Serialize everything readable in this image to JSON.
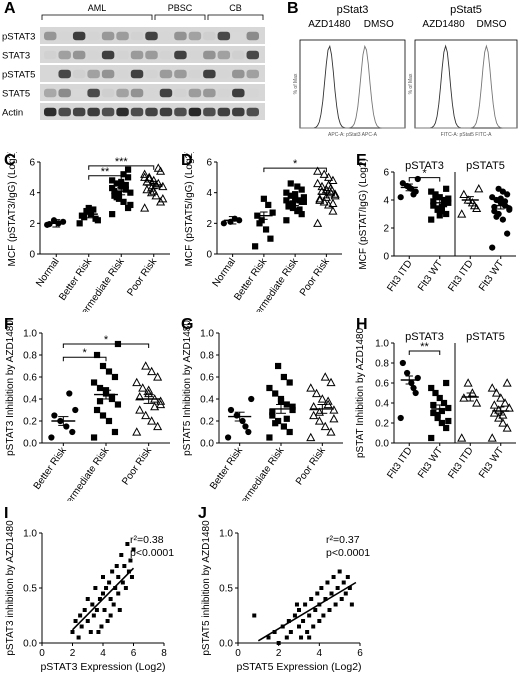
{
  "panels": {
    "A": {
      "letter": "A",
      "groups": [
        "AML",
        "PBSC",
        "CB"
      ],
      "rows": [
        "pSTAT3",
        "STAT3",
        "pSTAT5",
        "STAT5",
        "Actin"
      ]
    },
    "B": {
      "letter": "B",
      "plots": [
        {
          "title": "pStat3",
          "legend": [
            "AZD1480",
            "DMSO"
          ],
          "xlabel": "APC-A: pStat3 APC-A",
          "ylabel": "% of Max"
        },
        {
          "title": "pStat5",
          "legend": [
            "AZD1480",
            "DMSO"
          ],
          "xlabel": "FITC-A: pStat5 FITC-A",
          "ylabel": "% of Max"
        }
      ]
    }
  },
  "chart_data": [
    {
      "id": "C",
      "letter": "C",
      "type": "scatter",
      "ylabel": "MCF (pSTAT3/IgG) (Log2)",
      "ylim": [
        0,
        6
      ],
      "yticks": [
        0,
        2,
        4,
        6
      ],
      "categories": [
        "Normal",
        "Better Risk",
        "Intermediate Risk",
        "Poor Risk"
      ],
      "markers": [
        "circle",
        "square",
        "square",
        "triangle"
      ],
      "groups": [
        [
          1.9,
          2.1,
          2.0,
          2.2,
          1.95
        ],
        [
          2.0,
          2.3,
          2.6,
          2.8,
          2.5,
          2.2,
          2.9,
          3.0,
          2.4
        ],
        [
          2.6,
          3.0,
          3.4,
          3.6,
          3.8,
          4.0,
          4.2,
          4.4,
          4.6,
          4.8,
          5.0,
          5.2,
          3.9,
          4.1,
          3.2,
          4.5,
          4.7,
          3.7,
          4.3,
          5.5
        ],
        [
          3.0,
          3.4,
          3.8,
          4.0,
          4.2,
          4.4,
          4.6,
          4.8,
          5.0,
          5.2,
          5.4,
          4.5,
          4.3,
          4.7,
          3.6,
          5.6,
          4.1,
          4.9,
          5.0
        ]
      ],
      "means": [
        2.0,
        2.6,
        4.1,
        4.5
      ],
      "sigs": [
        {
          "from": 1,
          "to": 2,
          "label": "**",
          "y": 5.1
        },
        {
          "from": 1,
          "to": 3,
          "label": "***",
          "y": 5.75
        }
      ]
    },
    {
      "id": "D",
      "letter": "D",
      "type": "scatter",
      "ylabel": "MCF (pSTAT5/IgG) (Log2)",
      "ylim": [
        0,
        6
      ],
      "yticks": [
        0,
        2,
        4,
        6
      ],
      "categories": [
        "Normal",
        "Better Risk",
        "Intermediate Risk",
        "Poor Risk"
      ],
      "markers": [
        "circle",
        "square",
        "square",
        "triangle"
      ],
      "groups": [
        [
          2.0,
          2.2,
          2.3,
          2.1
        ],
        [
          0.5,
          1.0,
          1.6,
          2.2,
          2.5,
          2.7,
          3.2,
          3.6,
          2.0
        ],
        [
          2.2,
          2.6,
          2.8,
          3.0,
          3.2,
          3.4,
          3.5,
          3.6,
          3.8,
          4.0,
          4.2,
          4.4,
          3.3,
          3.1,
          3.7,
          2.9,
          3.9,
          4.6,
          3.5,
          3.4
        ],
        [
          2.0,
          2.8,
          3.2,
          3.4,
          3.6,
          3.8,
          4.0,
          4.2,
          4.4,
          4.6,
          4.8,
          5.0,
          5.2,
          3.5,
          3.9,
          4.3,
          3.7,
          4.1,
          5.4,
          3.3,
          4.5
        ]
      ],
      "means": [
        2.2,
        2.5,
        3.4,
        3.9
      ],
      "sigs": [
        {
          "from": 1,
          "to": 3,
          "label": "*",
          "y": 5.6
        }
      ]
    },
    {
      "id": "E",
      "letter": "E",
      "type": "scatter",
      "ylabel": "MCF (pSTAT/IgG) (Log2)",
      "ylim": [
        0,
        6
      ],
      "yticks": [
        0,
        2,
        4,
        6
      ],
      "categories": [
        "Flt3 ITD",
        "Flt3 WT",
        "Flt3 ITD",
        "Flt3 WT"
      ],
      "markers": [
        "circle",
        "square",
        "triangle",
        "circle"
      ],
      "headers": [
        "pSTAT3",
        "pSTAT5"
      ],
      "groups": [
        [
          4.2,
          4.6,
          4.8,
          5.0,
          5.2,
          5.5,
          4.4,
          4.9
        ],
        [
          2.6,
          3.0,
          3.2,
          3.4,
          3.6,
          3.8,
          4.0,
          4.2,
          4.4,
          4.6,
          4.8,
          3.5,
          3.3,
          3.9,
          4.1,
          3.7,
          2.9,
          4.3
        ],
        [
          3.0,
          3.4,
          3.8,
          4.0,
          4.4,
          4.8,
          3.6
        ],
        [
          0.6,
          1.6,
          2.6,
          3.0,
          3.2,
          3.4,
          3.6,
          3.8,
          4.0,
          4.2,
          4.4,
          4.6,
          4.8,
          3.5,
          3.3,
          3.9,
          4.1,
          2.8
        ]
      ],
      "means": [
        4.9,
        3.8,
        4.0,
        3.6
      ],
      "sigs": [
        {
          "from": 0,
          "to": 1,
          "label": "*",
          "y": 5.6
        }
      ]
    },
    {
      "id": "F",
      "letter": "F",
      "type": "scatter",
      "ylabel": "pSTAT3 Inhibition by AZD1480",
      "ylim": [
        0,
        1
      ],
      "yticks": [
        0,
        0.2,
        0.4,
        0.6,
        0.8,
        1.0
      ],
      "ytick_labels": [
        "0.0",
        "0.2",
        "0.4",
        "0.6",
        "0.8",
        "1.0"
      ],
      "categories": [
        "Better Risk",
        "Intermediate Risk",
        "Poor Risk"
      ],
      "markers": [
        "circle",
        "square",
        "triangle"
      ],
      "groups": [
        [
          0.05,
          0.1,
          0.15,
          0.2,
          0.25,
          0.3,
          0.45
        ],
        [
          0.05,
          0.1,
          0.2,
          0.25,
          0.3,
          0.35,
          0.4,
          0.45,
          0.5,
          0.55,
          0.6,
          0.65,
          0.7,
          0.8,
          0.9,
          0.42,
          0.48,
          0.38
        ],
        [
          0.1,
          0.15,
          0.2,
          0.25,
          0.3,
          0.35,
          0.4,
          0.45,
          0.5,
          0.55,
          0.6,
          0.65,
          0.7,
          0.42,
          0.38,
          0.33,
          0.48
        ]
      ],
      "means": [
        0.2,
        0.44,
        0.4
      ],
      "sigs": [
        {
          "from": 0,
          "to": 1,
          "label": "*",
          "y": 0.78
        },
        {
          "from": 0,
          "to": 2,
          "label": "*",
          "y": 0.9
        }
      ]
    },
    {
      "id": "G",
      "letter": "G",
      "type": "scatter",
      "ylabel": "pSTAT5 Inhibition by AZD1480",
      "ylim": [
        0,
        1
      ],
      "yticks": [
        0,
        0.2,
        0.4,
        0.6,
        0.8,
        1.0
      ],
      "ytick_labels": [
        "0.0",
        "0.2",
        "0.4",
        "0.6",
        "0.8",
        "1.0"
      ],
      "categories": [
        "Better Risk",
        "Intermediate Risk",
        "Poor Risk"
      ],
      "markers": [
        "circle",
        "square",
        "triangle"
      ],
      "groups": [
        [
          0.05,
          0.1,
          0.2,
          0.25,
          0.3,
          0.4,
          0.15
        ],
        [
          0.05,
          0.1,
          0.15,
          0.2,
          0.25,
          0.3,
          0.35,
          0.4,
          0.45,
          0.5,
          0.55,
          0.6,
          0.7,
          0.28,
          0.33,
          0.22,
          0.38,
          0.18
        ],
        [
          0.05,
          0.1,
          0.15,
          0.2,
          0.25,
          0.3,
          0.35,
          0.4,
          0.45,
          0.5,
          0.55,
          0.6,
          0.28,
          0.33,
          0.22,
          0.38
        ]
      ],
      "means": [
        0.24,
        0.31,
        0.31
      ],
      "sigs": []
    },
    {
      "id": "H",
      "letter": "H",
      "type": "scatter",
      "ylabel": "pSTAT Inhibition by AZD1480",
      "ylim": [
        0,
        1
      ],
      "yticks": [
        0,
        0.2,
        0.4,
        0.6,
        0.8,
        1.0
      ],
      "ytick_labels": [
        "0.0",
        "0.2",
        "0.4",
        "0.6",
        "0.8",
        "1.0"
      ],
      "categories": [
        "Flt3 ITD",
        "Flt3 WT",
        "Flt3 ITD",
        "Flt3 WT"
      ],
      "markers": [
        "circle",
        "square",
        "triangle",
        "triangle"
      ],
      "headers": [
        "pSTAT3",
        "pSTAT5"
      ],
      "groups": [
        [
          0.25,
          0.5,
          0.6,
          0.7,
          0.8,
          0.65,
          0.55
        ],
        [
          0.05,
          0.15,
          0.2,
          0.25,
          0.3,
          0.35,
          0.4,
          0.45,
          0.5,
          0.55,
          0.6,
          0.32,
          0.28,
          0.38,
          0.22
        ],
        [
          0.05,
          0.4,
          0.5,
          0.6,
          0.45
        ],
        [
          0.05,
          0.15,
          0.2,
          0.25,
          0.3,
          0.35,
          0.4,
          0.45,
          0.5,
          0.55,
          0.6,
          0.28,
          0.33,
          0.38
        ]
      ],
      "means": [
        0.63,
        0.34,
        0.46,
        0.32
      ],
      "sigs": [
        {
          "from": 0,
          "to": 1,
          "label": "**",
          "y": 0.92
        }
      ]
    },
    {
      "id": "I",
      "letter": "I",
      "type": "scatter",
      "xlabel": "pSTAT3 Expression (Log2)",
      "ylabel": "pSTAT3 inhibition by AZD1480",
      "xlim": [
        0,
        8
      ],
      "ylim": [
        0,
        1
      ],
      "xticks": [
        0,
        2,
        4,
        6,
        8
      ],
      "yticks": [
        0,
        0.5,
        1.0
      ],
      "ytick_labels": [
        "0.0",
        "0.5",
        "1.0"
      ],
      "annotation": [
        "r²=0.38",
        "p<0.0001"
      ],
      "fit": {
        "x": [
          2,
          6
        ],
        "y": [
          0.12,
          0.68
        ]
      },
      "points": [
        [
          2.0,
          0.1
        ],
        [
          2.2,
          0.2
        ],
        [
          2.4,
          0.05
        ],
        [
          2.5,
          0.25
        ],
        [
          2.6,
          0.15
        ],
        [
          2.8,
          0.3
        ],
        [
          3.0,
          0.2
        ],
        [
          3.0,
          0.4
        ],
        [
          3.2,
          0.1
        ],
        [
          3.3,
          0.35
        ],
        [
          3.4,
          0.25
        ],
        [
          3.5,
          0.5
        ],
        [
          3.6,
          0.3
        ],
        [
          3.8,
          0.4
        ],
        [
          3.9,
          0.15
        ],
        [
          4.0,
          0.45
        ],
        [
          4.0,
          0.6
        ],
        [
          4.1,
          0.3
        ],
        [
          4.2,
          0.5
        ],
        [
          4.3,
          0.2
        ],
        [
          4.4,
          0.55
        ],
        [
          4.5,
          0.4
        ],
        [
          4.6,
          0.65
        ],
        [
          4.7,
          0.35
        ],
        [
          4.8,
          0.5
        ],
        [
          4.9,
          0.7
        ],
        [
          5.0,
          0.45
        ],
        [
          5.0,
          0.6
        ],
        [
          5.2,
          0.8
        ],
        [
          5.3,
          0.55
        ],
        [
          5.4,
          0.7
        ],
        [
          5.5,
          0.5
        ],
        [
          5.6,
          0.9
        ],
        [
          5.7,
          0.65
        ],
        [
          5.8,
          0.75
        ],
        [
          5.9,
          0.6
        ],
        [
          6.0,
          0.85
        ],
        [
          3.7,
          0.1
        ],
        [
          4.5,
          0.25
        ],
        [
          5.1,
          0.3
        ]
      ]
    },
    {
      "id": "J",
      "letter": "J",
      "type": "scatter",
      "xlabel": "pSTAT5 Expression (Log2)",
      "ylabel": "pSTAT5 inhibition by AZD1480",
      "xlim": [
        0,
        6
      ],
      "ylim": [
        0,
        1
      ],
      "xticks": [
        0,
        2,
        4,
        6
      ],
      "yticks": [
        0,
        0.5,
        1.0
      ],
      "ytick_labels": [
        "0.0",
        "0.5",
        "1.0"
      ],
      "annotation": [
        "r²=0.37",
        "p<0.0001"
      ],
      "fit": {
        "x": [
          1.0,
          5.8
        ],
        "y": [
          0.02,
          0.55
        ]
      },
      "points": [
        [
          0.8,
          0.25
        ],
        [
          1.5,
          0.05
        ],
        [
          1.8,
          0.1
        ],
        [
          2.0,
          0.0
        ],
        [
          2.2,
          0.15
        ],
        [
          2.4,
          0.05
        ],
        [
          2.5,
          0.2
        ],
        [
          2.6,
          0.1
        ],
        [
          2.8,
          0.25
        ],
        [
          3.0,
          0.15
        ],
        [
          3.0,
          0.3
        ],
        [
          3.1,
          0.05
        ],
        [
          3.2,
          0.2
        ],
        [
          3.3,
          0.35
        ],
        [
          3.4,
          0.1
        ],
        [
          3.5,
          0.25
        ],
        [
          3.6,
          0.4
        ],
        [
          3.7,
          0.15
        ],
        [
          3.8,
          0.3
        ],
        [
          3.9,
          0.45
        ],
        [
          4.0,
          0.2
        ],
        [
          4.0,
          0.35
        ],
        [
          4.1,
          0.5
        ],
        [
          4.2,
          0.25
        ],
        [
          4.3,
          0.4
        ],
        [
          4.4,
          0.55
        ],
        [
          4.5,
          0.3
        ],
        [
          4.6,
          0.45
        ],
        [
          4.7,
          0.6
        ],
        [
          4.8,
          0.35
        ],
        [
          4.9,
          0.5
        ],
        [
          5.0,
          0.65
        ],
        [
          5.1,
          0.4
        ],
        [
          5.2,
          0.55
        ],
        [
          5.3,
          0.45
        ],
        [
          5.4,
          0.6
        ],
        [
          5.5,
          0.5
        ],
        [
          5.6,
          0.35
        ],
        [
          3.5,
          0.05
        ],
        [
          2.9,
          0.35
        ]
      ]
    }
  ]
}
